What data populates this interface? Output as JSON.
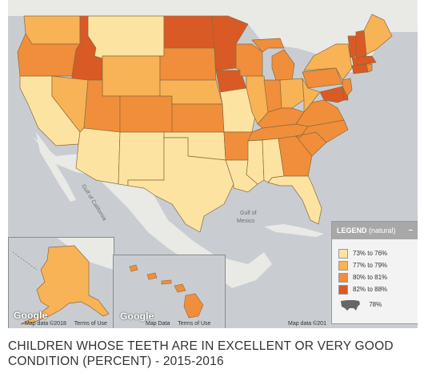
{
  "map": {
    "labels": {
      "gulf_california": "Gulf of California",
      "gulf_mexico_1": "Gulf of",
      "gulf_mexico_2": "Mexico"
    },
    "footer": {
      "main_mapdata": "Map data ©201",
      "alaska_mapdata": "Map data ©2018",
      "alaska_terms": "Terms of Use",
      "hawaii_mapdata": "Map Data",
      "hawaii_terms": "Terms of Use",
      "google": "Google"
    },
    "colors": {
      "c1": "#fde3a1",
      "c2": "#f8b356",
      "c3": "#f08e3b",
      "c4": "#d95a25",
      "land": "#e9e9e6",
      "water": "#c9cdd2"
    }
  },
  "legend": {
    "title": "LEGEND",
    "subtitle": "(natural)",
    "collapse": "–",
    "items": [
      {
        "label": "73% to 76%",
        "color": "#fde3a1"
      },
      {
        "label": "77% to 79%",
        "color": "#f8b356"
      },
      {
        "label": "80% to 81%",
        "color": "#f08e3b"
      },
      {
        "label": "82% to 88%",
        "color": "#d95a25"
      }
    ],
    "national": "78%"
  },
  "caption": "CHILDREN WHOSE TEETH ARE IN EXCELLENT OR VERY GOOD CONDITION (PERCENT) - 2015-2016"
}
